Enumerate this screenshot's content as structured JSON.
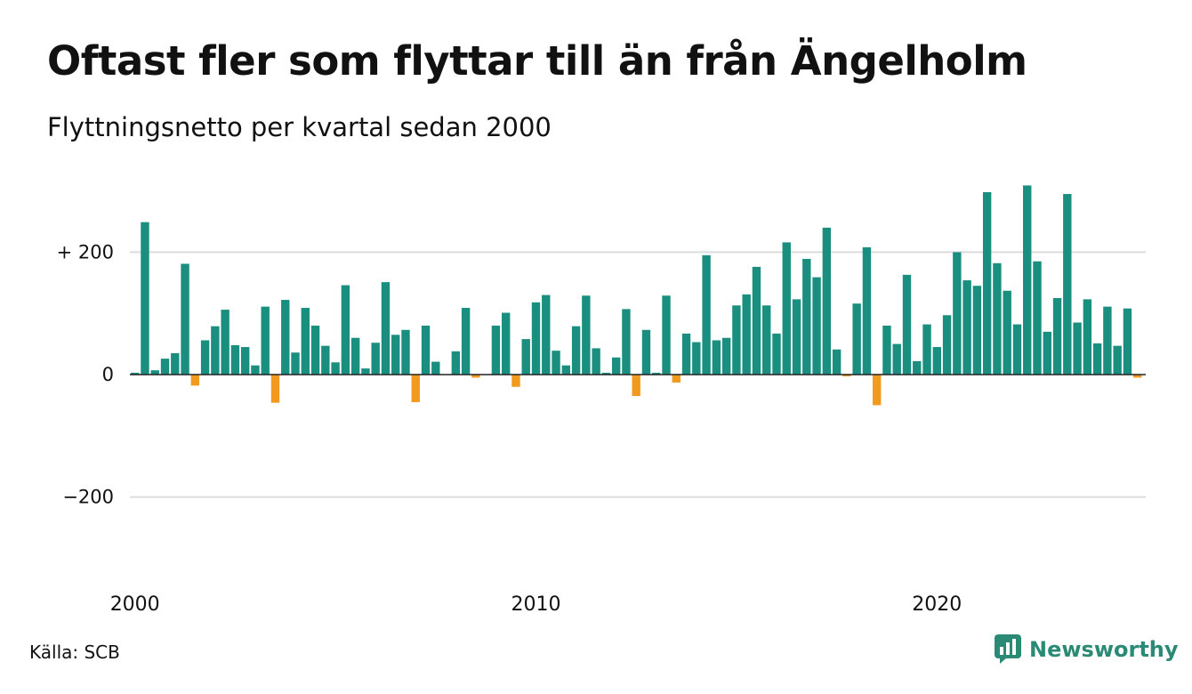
{
  "header": {
    "title": "Oftast fler som flyttar till än från Ängelholm",
    "subtitle": "Flyttningsnetto per kvartal sedan 2000"
  },
  "footer": {
    "source": "Källa: SCB",
    "brand": "Newsworthy",
    "brand_icon": "newsworthy-logo-icon"
  },
  "colors": {
    "positive": "#1a8f80",
    "negative": "#f29a1d",
    "grid": "#dcdcdc",
    "brand": "#2b8a76"
  },
  "chart_data": {
    "type": "bar",
    "title": "Oftast fler som flyttar till än från Ängelholm",
    "subtitle": "Flyttningsnetto per kvartal sedan 2000",
    "x_start": "2000 Q1",
    "frequency": "quarterly",
    "ylim": [
      -320,
      320
    ],
    "yticks": [
      {
        "value": 200,
        "label": "+ 200"
      },
      {
        "value": 0,
        "label": "0"
      },
      {
        "value": -200,
        "label": "−200"
      }
    ],
    "xticks": [
      {
        "index": 0,
        "label": "2000"
      },
      {
        "index": 40,
        "label": "2010"
      },
      {
        "index": 80,
        "label": "2020"
      }
    ],
    "grid": true,
    "values": [
      3,
      249,
      7,
      26,
      35,
      181,
      -18,
      56,
      79,
      106,
      48,
      45,
      15,
      111,
      -46,
      122,
      36,
      109,
      80,
      47,
      20,
      146,
      60,
      10,
      52,
      151,
      65,
      73,
      -45,
      80,
      21,
      0,
      38,
      109,
      -5,
      0,
      80,
      101,
      -20,
      58,
      118,
      130,
      39,
      15,
      79,
      129,
      43,
      3,
      28,
      107,
      -35,
      73,
      3,
      129,
      -13,
      67,
      53,
      195,
      56,
      60,
      113,
      131,
      176,
      113,
      67,
      216,
      123,
      189,
      159,
      240,
      41,
      -3,
      116,
      208,
      -50,
      80,
      50,
      163,
      22,
      82,
      45,
      97,
      200,
      154,
      145,
      298,
      182,
      137,
      82,
      309,
      185,
      70,
      125,
      295,
      85,
      123,
      51,
      111,
      47,
      108,
      -5
    ]
  }
}
